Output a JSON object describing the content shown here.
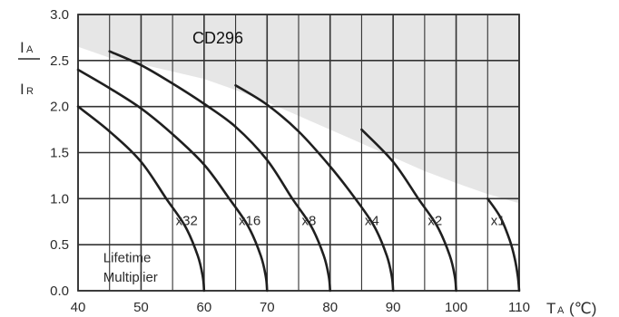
{
  "chart_data": {
    "type": "line",
    "title": "CD296",
    "xlabel": {
      "main": "T",
      "sub": "A",
      "unit": "(℃)"
    },
    "ylabel": {
      "numerator": "I",
      "numerator_sub": "A",
      "denominator": "I",
      "denominator_sub": "R"
    },
    "xlim": [
      40,
      110
    ],
    "ylim": [
      0,
      3.0
    ],
    "x_ticks": [
      "40",
      "50",
      "60",
      "70",
      "80",
      "90",
      "100",
      "110"
    ],
    "y_ticks": [
      "0.0",
      "0.5",
      "1.0",
      "1.5",
      "2.0",
      "2.5",
      "3.0"
    ],
    "grid": true,
    "colors": {
      "line": "#1f1f1f",
      "grid": "#333333",
      "shade": "#e6e6e6"
    },
    "series": [
      {
        "name": "x32",
        "label_at": [
          55.5,
          0.76
        ],
        "x": [
          40,
          45,
          50,
          54,
          57,
          59,
          59.8,
          60
        ],
        "y": [
          2.0,
          1.73,
          1.4,
          1.0,
          0.7,
          0.38,
          0.15,
          0
        ]
      },
      {
        "name": "x16",
        "label_at": [
          65.5,
          0.76
        ],
        "x": [
          40,
          45,
          50,
          55,
          60,
          64,
          67,
          69,
          69.8,
          70
        ],
        "y": [
          2.4,
          2.2,
          1.98,
          1.7,
          1.37,
          1.0,
          0.7,
          0.38,
          0.15,
          0
        ]
      },
      {
        "name": "x8",
        "label_at": [
          75.5,
          0.76
        ],
        "x": [
          45,
          50,
          55,
          60,
          65,
          70,
          74,
          77,
          79,
          79.8,
          80
        ],
        "y": [
          2.6,
          2.45,
          2.25,
          2.03,
          1.78,
          1.42,
          1.0,
          0.7,
          0.38,
          0.15,
          0
        ]
      },
      {
        "name": "x4",
        "label_at": [
          85.5,
          0.76
        ],
        "x": [
          65,
          70,
          75,
          80,
          84,
          87,
          89,
          89.8,
          90
        ],
        "y": [
          2.23,
          2.02,
          1.73,
          1.35,
          1.0,
          0.7,
          0.38,
          0.15,
          0
        ]
      },
      {
        "name": "x2",
        "label_at": [
          95.5,
          0.76
        ],
        "x": [
          85,
          90,
          94,
          97,
          99,
          99.8,
          100
        ],
        "y": [
          1.75,
          1.4,
          1.0,
          0.7,
          0.38,
          0.15,
          0
        ]
      },
      {
        "name": "x1",
        "label_at": [
          105.5,
          0.76
        ],
        "x": [
          105,
          107,
          108.5,
          109.3,
          109.8,
          110
        ],
        "y": [
          1.0,
          0.8,
          0.55,
          0.35,
          0.15,
          0
        ]
      }
    ],
    "shaded_region_boundary": {
      "x": [
        40,
        45,
        50,
        55,
        60,
        65,
        70,
        75,
        80,
        85,
        90,
        95,
        100,
        105,
        110
      ],
      "y": [
        2.65,
        2.53,
        2.46,
        2.38,
        2.3,
        2.18,
        2.05,
        1.9,
        1.75,
        1.6,
        1.45,
        1.3,
        1.17,
        1.05,
        0.95
      ]
    },
    "annotations": [
      {
        "text": "Lifetime",
        "x": 44.0,
        "y": 0.36
      },
      {
        "text": "Multiplier",
        "x": 44.0,
        "y": 0.15
      }
    ]
  }
}
